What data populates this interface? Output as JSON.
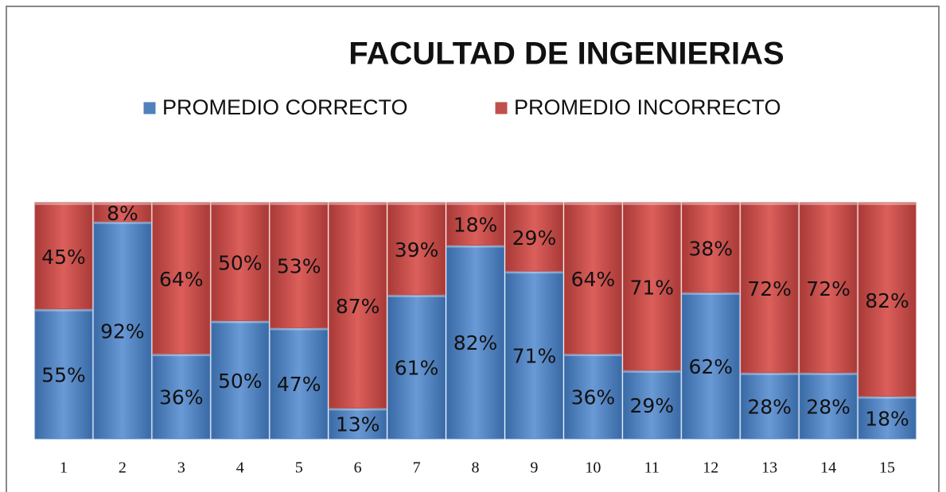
{
  "chart_data": {
    "type": "stacked_bar",
    "title": "FACULTAD DE INGENIERIAS",
    "categories": [
      "1",
      "2",
      "3",
      "4",
      "5",
      "6",
      "7",
      "8",
      "9",
      "10",
      "11",
      "12",
      "13",
      "14",
      "15"
    ],
    "series": [
      {
        "name": "PROMEDIO CORRECTO",
        "color": "#4f81bd",
        "values": [
          55,
          92,
          36,
          50,
          47,
          13,
          61,
          82,
          71,
          36,
          29,
          62,
          28,
          28,
          18
        ],
        "value_labels": [
          "55%",
          "92%",
          "36%",
          "50%",
          "47%",
          "13%",
          "61%",
          "82%",
          "71%",
          "36%",
          "29%",
          "62%",
          "28%",
          "28%",
          "18%"
        ]
      },
      {
        "name": "PROMEDIO INCORRECTO",
        "color": "#c0504d",
        "values": [
          45,
          8,
          64,
          50,
          53,
          87,
          39,
          18,
          29,
          64,
          71,
          38,
          72,
          72,
          82
        ],
        "value_labels": [
          "45%",
          "8%",
          "64%",
          "50%",
          "53%",
          "87%",
          "39%",
          "18%",
          "29%",
          "64%",
          "71%",
          "38%",
          "72%",
          "72%",
          "82%"
        ]
      }
    ],
    "ylim": [
      0,
      100
    ],
    "legend": "top"
  }
}
